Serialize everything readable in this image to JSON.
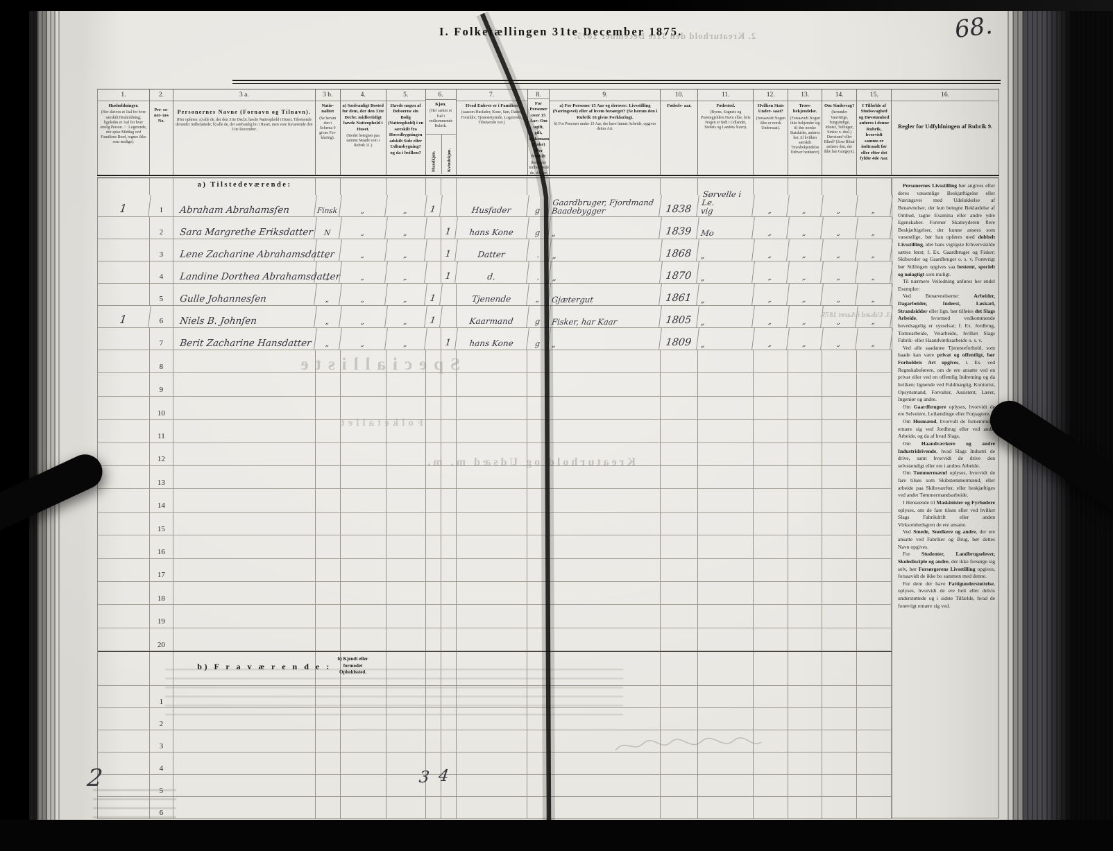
{
  "page": {
    "title": "I. Folketællingen 31te December 1875.",
    "page_number": "68.",
    "section_a": "a)  Tilstedeværende:",
    "section_b": "b)  F r a v æ r e n d e :",
    "section_b_note": "b) Kjendt eller\nformodet\nOpholdssted.",
    "totals": {
      "households": "2",
      "male": "3",
      "female": "4"
    }
  },
  "columns": [
    {
      "num": "1.",
      "label": "Husholdninger.",
      "sub": "(Her skrives et 1tal for hver særskilt Husholdning; ligeledes et 1tal for hver enslig Person. ☞ Logerende, der spise Middag ved Familiens Bord, regnes ikke som enslige)."
    },
    {
      "num": "2.",
      "label": "Per- so- ner- nes No."
    },
    {
      "num": "3 a.",
      "label": "Personernes Navne (Fornavn og Tilnavn).",
      "sub": "(Her opføres: a) alle de, der den 31te Decbr. havde Natteophold i Huset, Tilreisende derunder indbefattede; b) alle de, der sædvanlig bo i Huset, men vare fraværende den 31te December."
    },
    {
      "num": "3 b.",
      "label": "Natio- nalitet",
      "sub": "(Se herom den i Schema 0 givne For- klaring)."
    },
    {
      "num": "4.",
      "label": "a) Sædvanligt Bosted for dem, der den 31te Decbr. midlertidigt havde Natteophold i Huset.",
      "sub": "(Stedet betegnes paa samme Maade som i Rubrik 11.)"
    },
    {
      "num": "5.",
      "label": "Havde nogen af Beboerne sin Bolig (Natteophold) i en særskilt fra Hovedbygningen adskilt Side eller Udhusbygning? og da i hvilken?"
    },
    {
      "num": "6.",
      "label": "Kjøn.",
      "sub": "(Her sættes et 1tal i vedkommende Rubrik.",
      "sub_m": "Mandkjøn.",
      "sub_k": "Kvindekjøn."
    },
    {
      "num": "7.",
      "label": "Hvad Enhver er i Familien",
      "sub": "(saasom Husfader, Kone, Søn, Datter, Forældre, Tjenestetyende, Logerende, Tilreisende osv.)"
    },
    {
      "num": "8.",
      "label": "For Personer over 15 Aar: Om ugift, gift, Enkemand (Enke) eller fraskilt",
      "sub": "(herunder indbefattede de, der ere fraskilte med Hensyn til Bord og Seng). Betegnes saaledes: ug., g., e., f."
    },
    {
      "num": "9.",
      "label": "a) For Personer 15 Aar og derover: Livsstilling (Næringsvei) eller af hvem forsørget? (Se herom den i Rubrik 16 givne Forklaring).",
      "sub": "b) For Personer under 15 Aar, der have lønnet Arbeide, opgives dettes Art."
    },
    {
      "num": "10.",
      "label": "Fødsels-",
      "sub2": "aar."
    },
    {
      "num": "11.",
      "label": "Fødested.",
      "sub": "(Byens, Sognets og Præstegjeldets Navn eller, hvis Nogen er født i Udlandet, Stedets og Landets Navn)."
    },
    {
      "num": "12.",
      "label": "Hvilken Stats Under- saat?",
      "sub": "(forsaavidt Nogen ikke er norsk Undersaat)."
    },
    {
      "num": "13.",
      "label": "Troes- bekjendelse.",
      "sub": "(Forsaavidt Nogen ikke bekjender sig til den norske Statskirke, anføres her, til hvilken særskilt Troesbekjendelse Enhver henhører)"
    },
    {
      "num": "14.",
      "label": "Om Sindssvag?",
      "sub": "(herunder Vanvittige, Tungsindige, Idioter, Tullinger, Sinker o. desl.) Døvstum? eller Blind? (Som Blind anføres den, der ikke har Gangsyn)."
    },
    {
      "num": "15.",
      "label": "I Tilfælde af Sindssvaghed og Døvstumhed anføres i denne Rubrik, hvorvidt samme er indtraadt før eller efter det fyldte 4de Aar."
    },
    {
      "num": "16.",
      "label": "Regler for Udfyldningen af Rubrik 9."
    }
  ],
  "rows": [
    {
      "hh": "1",
      "no": "1",
      "name": "Abraham Abrahamsſen",
      "nat": "Finsk",
      "c4": "„",
      "c5": "„",
      "m": "1",
      "k": "",
      "fam": "Husfader",
      "st": "g",
      "occ": "Gaardbruger, Fjordmand\nBaadebygger",
      "born": "1838",
      "place": "Sørvelle i Le.\nvig",
      "c12": "„",
      "c13": "„",
      "c14": "„",
      "c15": "„"
    },
    {
      "hh": "",
      "no": "2",
      "name": "Sara Margrethe Eriksdatter",
      "nat": "N",
      "c4": "„",
      "c5": "„",
      "m": "",
      "k": "1",
      "fam": "hans Kone",
      "st": "g",
      "occ": "„",
      "born": "1839",
      "place": "Mo",
      "c12": "„",
      "c13": "„",
      "c14": "„",
      "c15": "„"
    },
    {
      "hh": "",
      "no": "3",
      "name": "Lene Zacharine Abrahamsdatter",
      "nat": "„",
      "c4": "„",
      "c5": "„",
      "m": "",
      "k": "1",
      "fam": "Datter",
      "st": ".",
      "occ": "„",
      "born": "1868",
      "place": "„",
      "c12": "„",
      "c13": "„",
      "c14": "„",
      "c15": "„"
    },
    {
      "hh": "",
      "no": "4",
      "name": "Landine Dorthea Abrahamsdatter",
      "nat": "„",
      "c4": "„",
      "c5": "„",
      "m": "",
      "k": "1",
      "fam": "d.",
      "st": ".",
      "occ": "„",
      "born": "1870",
      "place": "„",
      "c12": "„",
      "c13": "„",
      "c14": "„",
      "c15": "„"
    },
    {
      "hh": "",
      "no": "5",
      "name": "Gulle Johannesſen",
      "nat": "„",
      "c4": "„",
      "c5": "„",
      "m": "1",
      "k": "",
      "fam": "Tjenende",
      "st": "„",
      "occ": "Gjætergut",
      "born": "1861",
      "place": "„",
      "c12": "„",
      "c13": "„",
      "c14": "„",
      "c15": "„"
    },
    {
      "hh": "1",
      "no": "6",
      "name": "Niels B. Johnſen",
      "nat": "„",
      "c4": "„",
      "c5": "„",
      "m": "1",
      "k": "",
      "fam": "Kaarmand",
      "st": "g",
      "occ": "Fisker, har Kaar",
      "born": "1805",
      "place": "„",
      "c12": "„",
      "c13": "„",
      "c14": "„",
      "c15": "„"
    },
    {
      "hh": "",
      "no": "7",
      "name": "Berit Zacharine Hansdatter",
      "nat": "„",
      "c4": "„",
      "c5": "„",
      "m": "",
      "k": "1",
      "fam": "hans Kone",
      "st": "g",
      "occ": "„",
      "born": "1809",
      "place": "„",
      "c12": "„",
      "c13": "„",
      "c14": "„",
      "c15": "„"
    }
  ],
  "empty_rows_a": [
    "8",
    "9",
    "10",
    "11",
    "12",
    "13",
    "14",
    "15",
    "16",
    "17",
    "18",
    "19",
    "20"
  ],
  "rows_b": [
    "1",
    "2",
    "3",
    "4",
    "5",
    "6"
  ],
  "instructions": {
    "paragraphs": [
      "**Personernes Livsstilling** bør angives efter deres væsentlige Beskjæftigelse eller Næringsvei med Udelukkelse af Benævnelser, der kun betegne Beklædelse af Ombud, tagne Examina eller andre ydre Egenskaber. Forener Skatteyderen flere Beskjæftigelser, der kunne ansees som væsentlige, bør han opføres med **dobbelt Livsstilling**, idet hans vigtigste Erhvervskilde sættes først; f. Ex. Gaardbruger og Fisker; Skibsreder og Gaardbruger o. s. v. Forøvrigt bør Stillingen opgives saa **bestemt, specielt og nøiagtigt** som muligt.",
      "Til nærmere Veiledning anføres her endel Exempler:",
      "Ved Benævnelserne: **Arbeider, Dagarbeider, Inderst, Løskarl, Strandsidder** eller lign. bør tilføies **det Slags Arbeide**, hvormed vedkommende hovedsagelig er sysselsat; f. Ex. Jordbrug, Tomtearbeide, Veiarbeide, hvilket Slags Fabrik- eller Haandværksarbeide o. s. v.",
      "Ved alle saadanne Tjenesteforhold, som baade kan være **privat og offentligt, bør Forholdets Art opgives**, t. Ex. ved Regnskabsførere, om de ere ansatte ved en privat eller ved en offentlig Indretning og da hvilken; lignende ved Fuldmægtig, Kontorist, Opsynsmand, Forvalter, Assistent, Lærer, Ingeniør og andre.",
      "Om **Gaardbrugere** oplyses, hvorvidt de ere Selveiere, Leilændinge eller Forpagtere.",
      "Om **Husmænd**, hvorvidt de fornemmelig ernære sig ved Jordbrug eller ved andet Arbeide, og da af hvad Slags.",
      "Om **Haandværkere og andre Industridrivende**, hvad Slags Industri de drive, samt hvorvidt de drive den selvstændigt eller ere i andres Arbeide.",
      "Om **Tømmermænd** oplyses, hvorvidt de fare tilsøs som Skibstømmermænd, eller arbeide paa Skibsværfter, eller beskjæftiges ved andet Tømmermandsarbeide.",
      "I Henseende til **Maskinister og Fyrbødere** oplyses, om de fare tilsøs eller ved hvilket Slags Fabrikdrift eller anden Virksomhedsgren de ere ansatte.",
      "Ved **Smede, Snedkere og andre**, der ere ansatte ved Fabriker og Brug, bør dettes Navn opgives.",
      "For **Studenter, Landbrugselever, Skoledisciple og andre**, der ikke forsørge sig selv, bør **Forsørgerens Livsstilling** opgives, forsaavidt de ikke bo sammen med denne.",
      "For dem der have **Fattigunderstøttelse**, oplyses, hvorvidt de ere helt eller delvis understøttede og i sidste Tilfælde, hvad de forøvrigt ernære sig ved."
    ]
  },
  "bleedthrough": {
    "top": "2. Kreaturhold den 31te December 1875.",
    "specialliste": "Specialliste",
    "folketallet": "Folketallet",
    "kreaturhold": "Kreaturhold og Udsæd m. m.",
    "udsaed": "3. Udsæd i Aaret 1875."
  }
}
